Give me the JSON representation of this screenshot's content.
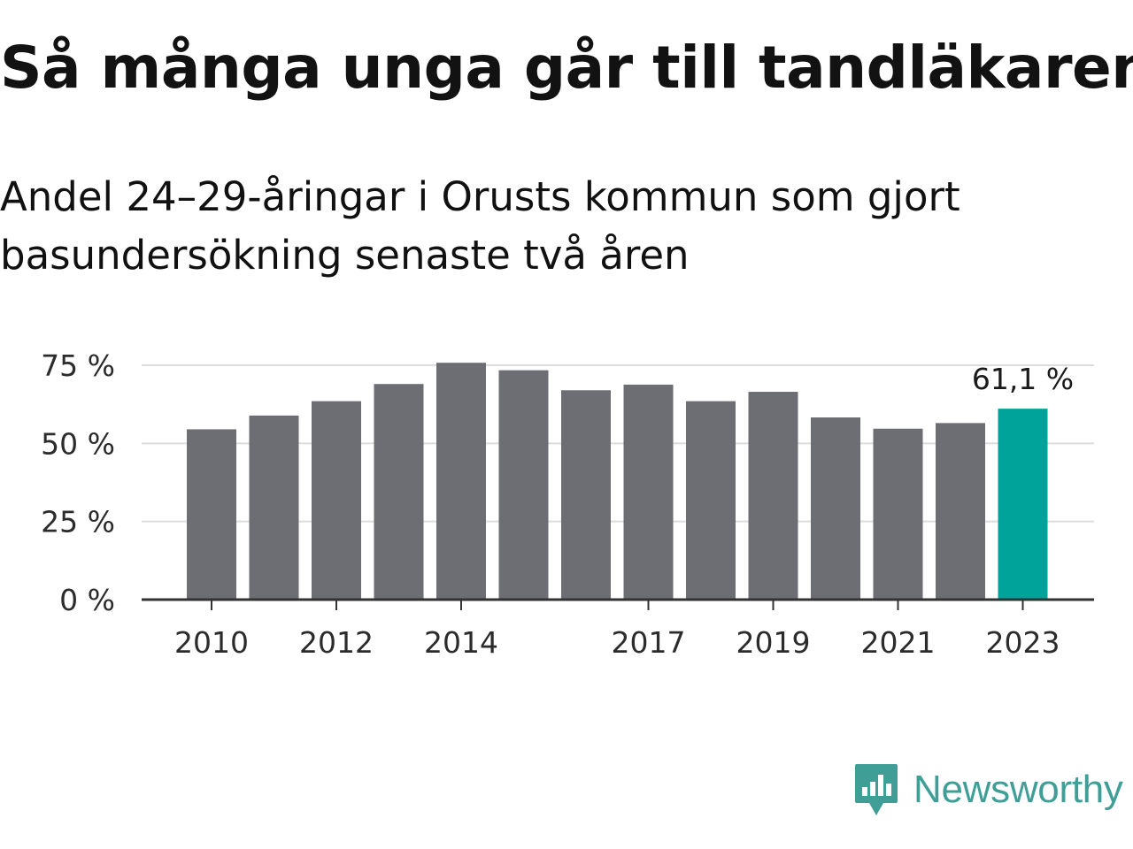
{
  "header": {
    "title": "Så många unga går till tandläkaren",
    "subtitle": "Andel 24–29-åringar i Orusts kommun som gjort basundersökning senaste två åren"
  },
  "chart_data": {
    "type": "bar",
    "years": [
      2010,
      2011,
      2012,
      2013,
      2014,
      2015,
      2016,
      2017,
      2018,
      2019,
      2020,
      2021,
      2022,
      2023
    ],
    "values": [
      54.5,
      58.9,
      63.5,
      69.0,
      75.8,
      73.4,
      67.0,
      68.8,
      63.5,
      66.5,
      58.3,
      54.7,
      56.5,
      61.1
    ],
    "y_ticks": [
      {
        "value": 0,
        "label": "0 %"
      },
      {
        "value": 25,
        "label": "25 %"
      },
      {
        "value": 50,
        "label": "50 %"
      },
      {
        "value": 75,
        "label": "75 %"
      }
    ],
    "x_ticks": [
      {
        "year": 2010,
        "label": "2010"
      },
      {
        "year": 2012,
        "label": "2012"
      },
      {
        "year": 2014,
        "label": "2014"
      },
      {
        "year": 2017,
        "label": "2017"
      },
      {
        "year": 2019,
        "label": "2019"
      },
      {
        "year": 2021,
        "label": "2021"
      },
      {
        "year": 2023,
        "label": "2023"
      }
    ],
    "ylim": [
      0,
      75
    ],
    "highlight_year": 2023,
    "highlight_label": "61,1 %",
    "colors": {
      "bar": "#6d6d74",
      "highlight": "#00a39a",
      "grid": "#dcdcdc",
      "axis": "#333333",
      "text": "#2b2b2b"
    },
    "grid": true,
    "legend": "none"
  },
  "brand": {
    "name": "Newsworthy",
    "icon": "newsworthy-logo-icon",
    "color": "#3f9f96"
  }
}
